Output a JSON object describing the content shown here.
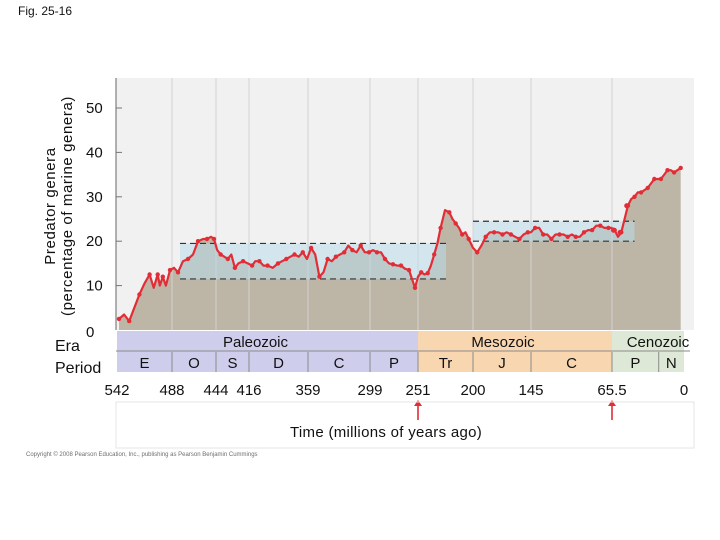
{
  "figure": {
    "label": "Fig. 25-16",
    "copyright": "Copyright © 2008 Pearson Education, Inc., publishing as Pearson Benjamin Cummings"
  },
  "chart_data": {
    "type": "line",
    "title": "",
    "ylabel_lines": [
      "Predator genera",
      "(percentage of marine genera)"
    ],
    "xlabel": "Time (millions of years ago)",
    "xlim": [
      542,
      0
    ],
    "ylim": [
      0,
      50
    ],
    "y_ticks": [
      0,
      10,
      20,
      30,
      40,
      50
    ],
    "x_ticks": [
      "542",
      "488",
      "444",
      "416",
      "359",
      "299",
      "251",
      "200",
      "145",
      "65.5",
      "0"
    ],
    "x_tick_values": [
      542,
      488,
      444,
      416,
      359,
      299,
      251,
      200,
      145,
      65.5,
      0
    ],
    "colors": {
      "plot_background": "#f1f1f1",
      "area_fill": "#bdb6a6",
      "line": "#e32d36",
      "marker": "#e32d36",
      "paleozoic_band": "#cfcdec",
      "mesozoic_band": "#f8d6b0",
      "cenozoic_band": "#dde9d6",
      "range_box": "#b9dbea"
    },
    "marker_ages": [
      64,
      58,
      52
    ],
    "range_boxes": [
      {
        "x_range": [
          480,
          225
        ],
        "y_range": [
          11.5,
          19.5
        ]
      },
      {
        "x_range": [
          200,
          45
        ],
        "y_range": [
          20,
          24.5
        ]
      }
    ],
    "series": [
      {
        "x": [
          540,
          535,
          530,
          525,
          520,
          515,
          510,
          506,
          502,
          500,
          497,
          494,
          490,
          486,
          482,
          477,
          472,
          467,
          462,
          457,
          453,
          449,
          446,
          443,
          440,
          437,
          434,
          431,
          428,
          425,
          421,
          417,
          413,
          410,
          406,
          402,
          398,
          393,
          388,
          384,
          380,
          376,
          372,
          368,
          364,
          360,
          356,
          352,
          348,
          344,
          340,
          336,
          332,
          328,
          324,
          320,
          316,
          312,
          308,
          304,
          300,
          296,
          292,
          288,
          284,
          280,
          276,
          272,
          268,
          264,
          260,
          257,
          254,
          251,
          248,
          245,
          242,
          239,
          236,
          233,
          230,
          226,
          222,
          219,
          216,
          213,
          210,
          207,
          204,
          200,
          196,
          192,
          188,
          184,
          180,
          176,
          172,
          168,
          164,
          160,
          156,
          152,
          148,
          145,
          141,
          137,
          133,
          129,
          125,
          121,
          117,
          113,
          109,
          105,
          101,
          97,
          93,
          89,
          85,
          81,
          77,
          73,
          69,
          66,
          63,
          60,
          57,
          54,
          51,
          48,
          45,
          42,
          39,
          36,
          33,
          30,
          27,
          24,
          21,
          18,
          15,
          12,
          9,
          6,
          3
        ],
        "y": [
          2.5,
          3.5,
          2,
          5,
          8,
          10.5,
          12.5,
          9.5,
          12.5,
          10,
          12,
          10,
          13.5,
          14,
          13,
          15.5,
          16,
          17,
          20,
          20.5,
          20.5,
          21,
          20.5,
          18,
          17,
          16.5,
          16,
          17,
          14,
          15,
          15.5,
          15,
          14.5,
          15.5,
          15.5,
          14.5,
          14.5,
          14,
          15,
          15.5,
          16,
          16.5,
          17,
          16.5,
          17.5,
          16,
          18.5,
          17,
          12,
          13,
          16,
          15.5,
          16.5,
          17,
          17.5,
          19,
          18,
          17.5,
          19,
          17.5,
          17.5,
          18,
          17.5,
          17.5,
          16,
          15,
          14.8,
          14.5,
          14.5,
          13.8,
          13.5,
          11.5,
          9.5,
          12,
          13,
          12.5,
          12.8,
          14.5,
          17,
          19.5,
          23,
          27,
          26.5,
          25,
          24,
          23,
          21.5,
          22,
          20.5,
          18.5,
          17.5,
          19,
          21,
          22,
          22,
          22,
          21.5,
          22,
          21.5,
          21,
          20.5,
          21.5,
          22,
          22,
          23,
          23,
          21.5,
          21.5,
          20.5,
          21.5,
          21.5,
          21.5,
          21,
          21.5,
          21,
          21,
          22,
          22.5,
          22.5,
          23.5,
          23.5,
          23,
          23,
          23,
          22.5,
          21,
          22,
          25,
          28,
          29.5,
          30,
          31,
          31,
          31.5,
          32,
          33,
          34,
          34,
          34,
          35,
          36,
          36,
          35.5,
          36,
          36.5
        ]
      }
    ],
    "period_rows": {
      "era_label": "Era",
      "period_label": "Period",
      "eras": [
        {
          "name": "Paleozoic",
          "start": 542,
          "end": 251
        },
        {
          "name": "Mesozoic",
          "start": 251,
          "end": 65.5
        },
        {
          "name": "Cenozoic",
          "start": 65.5,
          "end": 0
        }
      ],
      "periods": [
        {
          "name": "E",
          "start": 542,
          "end": 488
        },
        {
          "name": "O",
          "start": 488,
          "end": 444
        },
        {
          "name": "S",
          "start": 444,
          "end": 416
        },
        {
          "name": "D",
          "start": 416,
          "end": 359
        },
        {
          "name": "C",
          "start": 359,
          "end": 299
        },
        {
          "name": "P",
          "start": 299,
          "end": 251
        },
        {
          "name": "Tr",
          "start": 251,
          "end": 200
        },
        {
          "name": "J",
          "start": 200,
          "end": 145
        },
        {
          "name": "C",
          "start": 145,
          "end": 65.5
        },
        {
          "name": "P",
          "start": 65.5,
          "end": 23
        },
        {
          "name": "N",
          "start": 23,
          "end": 0
        }
      ]
    },
    "extinction_markers": [
      {
        "x": 251,
        "icon": "arrow-up"
      },
      {
        "x": 65.5,
        "icon": "arrow-up"
      }
    ]
  }
}
